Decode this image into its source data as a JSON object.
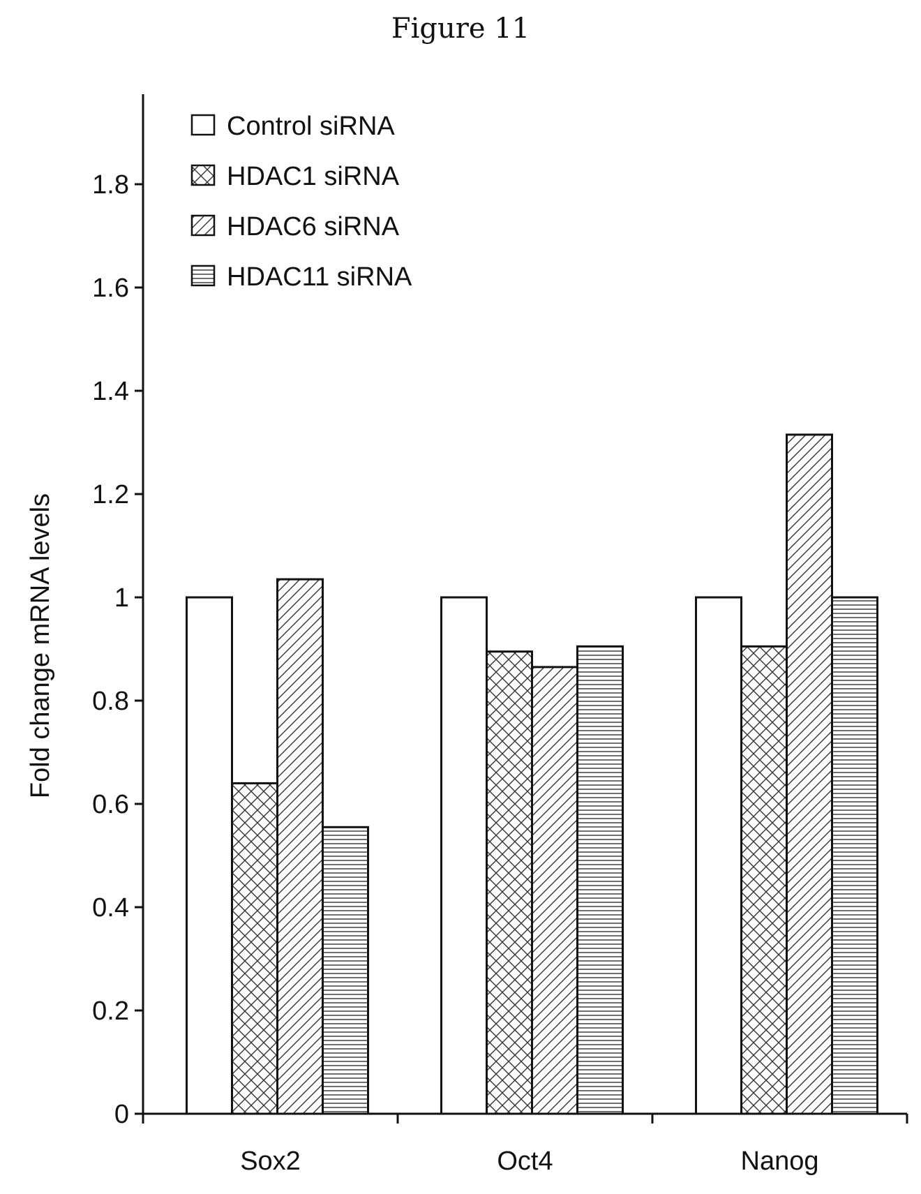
{
  "figure_title": "Figure 11",
  "chart_data": {
    "type": "bar",
    "title": "",
    "xlabel": "",
    "ylabel": "Fold change mRNA levels",
    "ylim": [
      0,
      2.0
    ],
    "yticks": [
      "0",
      "0.2",
      "0.4",
      "0.6",
      "0.8",
      "1",
      "1.2",
      "1.4",
      "1.6",
      "1.8"
    ],
    "categories": [
      "Sox2",
      "Oct4",
      "Nanog"
    ],
    "legend_position": "top-left",
    "grid": false,
    "series": [
      {
        "name": "Control siRNA",
        "pattern": "none",
        "values": [
          1.0,
          1.0,
          1.0
        ]
      },
      {
        "name": "HDAC1 siRNA",
        "pattern": "crosshatch",
        "values": [
          0.64,
          0.895,
          0.905
        ]
      },
      {
        "name": "HDAC6 siRNA",
        "pattern": "diagonal",
        "values": [
          1.035,
          0.865,
          1.315
        ]
      },
      {
        "name": "HDAC11 siRNA",
        "pattern": "horizontal",
        "values": [
          0.555,
          0.905,
          1.0
        ]
      }
    ]
  }
}
